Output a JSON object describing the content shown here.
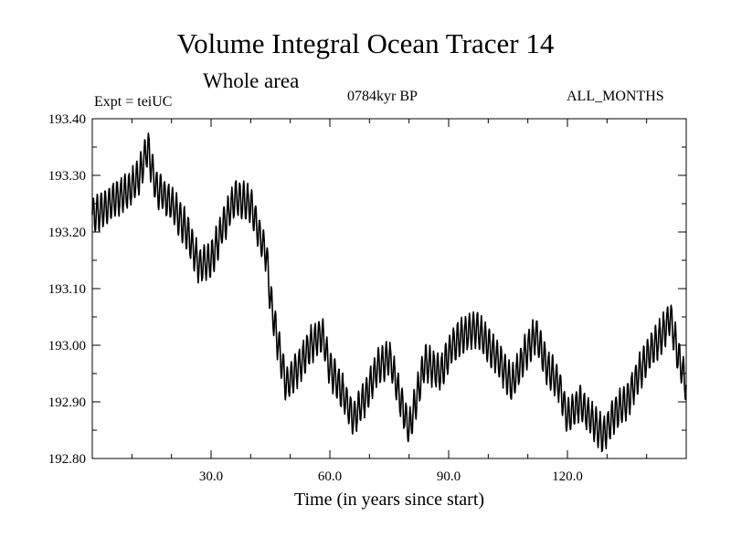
{
  "header": {
    "title": "Volume Integral Ocean Tracer 14",
    "subtitle": "Whole area",
    "expt": "Expt = teiUC",
    "period": "0784kyr BP",
    "months": "ALL_MONTHS"
  },
  "chart_data": {
    "type": "line",
    "title": "Volume Integral Ocean Tracer 14",
    "subtitle": "Whole area",
    "xlabel": "Time (in years since start)",
    "ylabel": "",
    "xlim": [
      0,
      150
    ],
    "ylim": [
      192.8,
      193.4
    ],
    "xticks": [
      30,
      60,
      90,
      120
    ],
    "xtick_labels": [
      "30.0",
      "60.0",
      "90.0",
      "120.0"
    ],
    "yticks": [
      192.8,
      192.9,
      193.0,
      193.1,
      193.2,
      193.3,
      193.4
    ],
    "ytick_labels": [
      "192.80",
      "192.90",
      "193.00",
      "193.10",
      "193.20",
      "193.30",
      "193.40"
    ],
    "grid": false,
    "series": [
      {
        "name": "",
        "color": "#000000",
        "seasonal_amplitude": 0.03,
        "x": [
          0,
          3,
          6,
          9,
          12,
          14,
          16,
          20,
          24,
          27,
          30,
          33,
          36,
          40,
          42,
          44,
          45,
          47,
          49,
          52,
          55,
          58,
          60,
          63,
          66,
          69,
          72,
          75,
          78,
          80,
          84,
          88,
          91,
          94,
          97,
          100,
          103,
          106,
          109,
          112,
          115,
          118,
          120,
          123,
          126,
          129,
          132,
          135,
          138,
          141,
          144,
          146,
          148,
          150
        ],
        "y": [
          193.23,
          193.24,
          193.26,
          193.27,
          193.3,
          193.35,
          193.28,
          193.25,
          193.2,
          193.14,
          193.15,
          193.21,
          193.26,
          193.25,
          193.2,
          193.16,
          193.08,
          193.0,
          192.93,
          192.96,
          193.0,
          193.02,
          192.96,
          192.92,
          192.87,
          192.91,
          192.96,
          192.98,
          192.9,
          192.85,
          192.97,
          192.95,
          193.0,
          193.02,
          193.03,
          193.0,
          192.97,
          192.93,
          192.98,
          193.02,
          192.96,
          192.93,
          192.87,
          192.9,
          192.87,
          192.84,
          192.88,
          192.9,
          192.95,
          192.99,
          193.02,
          193.05,
          192.98,
          192.93
        ]
      }
    ]
  }
}
